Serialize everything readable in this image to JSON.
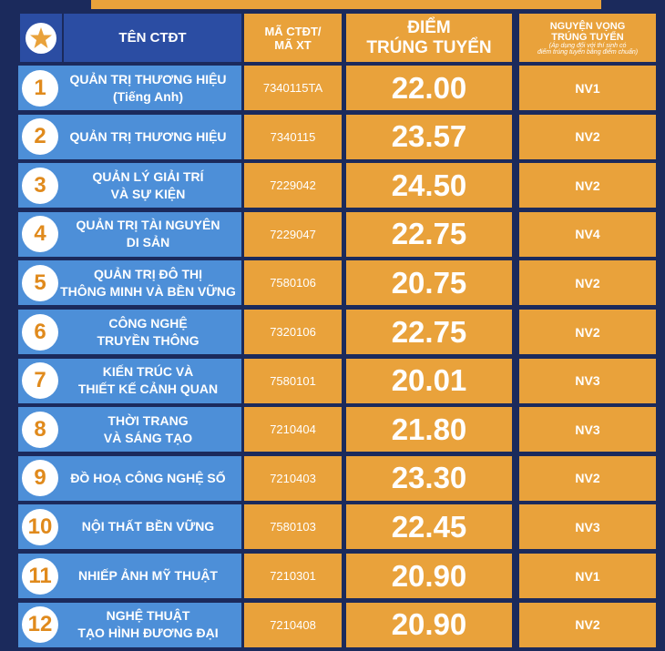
{
  "header": {
    "col_name": "TÊN CTĐT",
    "col_code": [
      "MÃ CTĐT/",
      "MÃ XT"
    ],
    "col_score": [
      "ĐIỂM",
      "TRÚNG TUYỂN"
    ],
    "col_nv": [
      "NGUYỆN VỌNG",
      "TRÚNG TUYỂN"
    ],
    "col_nv_note": [
      "(Áp dụng đối với thí sinh có",
      "điểm trúng tuyển bằng điểm chuẩn)"
    ]
  },
  "table": {
    "rows": [
      {
        "no": "1",
        "name": [
          "QUẢN TRỊ THƯƠNG HIỆU",
          "(Tiếng Anh)"
        ],
        "code": "7340115TA",
        "score": "22.00",
        "nv": "NV1"
      },
      {
        "no": "2",
        "name": [
          "QUẢN TRỊ THƯƠNG HIỆU"
        ],
        "code": "7340115",
        "score": "23.57",
        "nv": "NV2"
      },
      {
        "no": "3",
        "name": [
          "QUẢN LÝ GIẢI TRÍ",
          "VÀ SỰ KIỆN"
        ],
        "code": "7229042",
        "score": "24.50",
        "nv": "NV2"
      },
      {
        "no": "4",
        "name": [
          "QUẢN TRỊ TÀI NGUYÊN",
          "DI SẢN"
        ],
        "code": "7229047",
        "score": "22.75",
        "nv": "NV4"
      },
      {
        "no": "5",
        "name": [
          "QUẢN TRỊ ĐÔ THỊ",
          "THÔNG MINH VÀ BỀN VỮNG"
        ],
        "code": "7580106",
        "score": "20.75",
        "nv": "NV2"
      },
      {
        "no": "6",
        "name": [
          "CÔNG NGHỆ",
          "TRUYỀN THÔNG"
        ],
        "code": "7320106",
        "score": "22.75",
        "nv": "NV2"
      },
      {
        "no": "7",
        "name": [
          "KIẾN TRÚC VÀ",
          "THIẾT KẾ CẢNH QUAN"
        ],
        "code": "7580101",
        "score": "20.01",
        "nv": "NV3"
      },
      {
        "no": "8",
        "name": [
          "THỜI TRANG",
          "VÀ SÁNG TẠO"
        ],
        "code": "7210404",
        "score": "21.80",
        "nv": "NV3"
      },
      {
        "no": "9",
        "name": [
          "ĐỒ HOẠ CÔNG NGHỆ SỐ"
        ],
        "code": "7210403",
        "score": "23.30",
        "nv": "NV2"
      },
      {
        "no": "10",
        "name": [
          "NỘI THẤT BỀN VỮNG"
        ],
        "code": "7580103",
        "score": "22.45",
        "nv": "NV3"
      },
      {
        "no": "11",
        "name": [
          "NHIẾP ẢNH MỸ THUẬT"
        ],
        "code": "7210301",
        "score": "20.90",
        "nv": "NV1"
      },
      {
        "no": "12",
        "name": [
          "NGHỆ THUẬT",
          "TẠO HÌNH ĐƯƠNG ĐẠI"
        ],
        "code": "7210408",
        "score": "20.90",
        "nv": "NV2"
      }
    ]
  }
}
